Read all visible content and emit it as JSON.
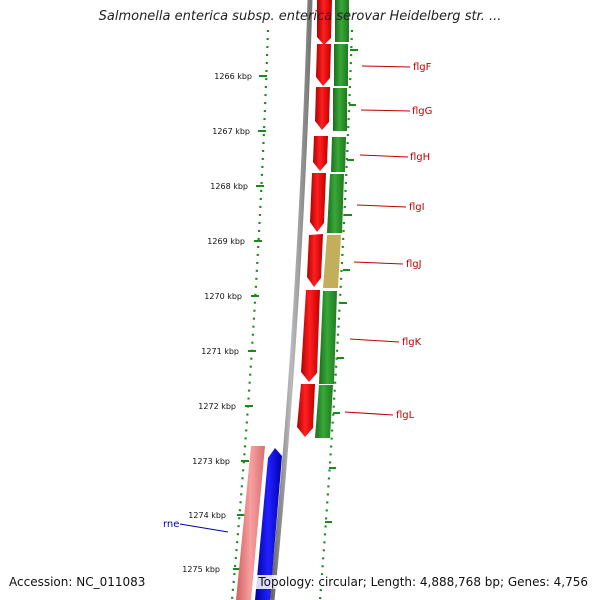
{
  "title": "Salmonella enterica subsp. enterica serovar Heidelberg str. ...",
  "footer": {
    "accession": "Accession: NC_011083",
    "summary": "Topology: circular; Length: 4,888,768 bp; Genes: 4,756"
  },
  "scale": {
    "ticks": [
      "1266 kbp",
      "1267 kbp",
      "1268 kbp",
      "1269 kbp",
      "1270 kbp",
      "1271 kbp",
      "1272 kbp",
      "1273 kbp",
      "1274 kbp",
      "1275 kbp"
    ]
  },
  "genes": {
    "labels": [
      {
        "name": "flgF",
        "color": "#c00000"
      },
      {
        "name": "flgG",
        "color": "#c00000"
      },
      {
        "name": "flgH",
        "color": "#c00000"
      },
      {
        "name": "flgI",
        "color": "#c00000"
      },
      {
        "name": "flgJ",
        "color": "#c00000"
      },
      {
        "name": "flgK",
        "color": "#c00000"
      },
      {
        "name": "flgL",
        "color": "#c00000"
      },
      {
        "name": "rne",
        "color": "#0000b0"
      }
    ]
  },
  "colors": {
    "forward_cds": "#e00000",
    "reverse_cds": "#2a8a2a",
    "rna": "#0000e0",
    "other": "#f08080",
    "backbone": "#888888",
    "tick_green": "#1a8a1a"
  }
}
